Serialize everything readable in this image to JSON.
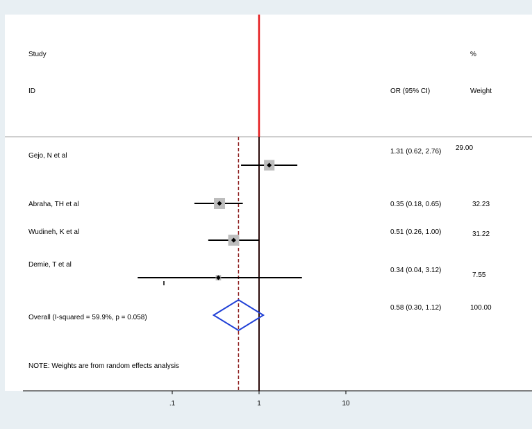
{
  "header": {
    "study_line1": "Study",
    "study_line2": "ID",
    "or_header": "OR (95% CI)",
    "weight_line1": "%",
    "weight_line2": "Weight"
  },
  "note": "NOTE: Weights are from random effects analysis",
  "colors": {
    "background": "#e8eff3",
    "panel": "#ffffff",
    "null_line": "#e41a1c",
    "study_marker_box": "#bdbdbd",
    "ci_line": "#000000",
    "overall_diamond": "#1f3fd6",
    "overall_line": "#8b1a1a"
  },
  "chart_data": {
    "type": "forest",
    "title": "",
    "xlabel": "",
    "x_scale": "log",
    "null_value": 1,
    "x_ticks": [
      0.1,
      1,
      10
    ],
    "x_tick_labels": [
      ".1",
      "1",
      "10"
    ],
    "studies": [
      {
        "name": "Gejo, N et al",
        "or": 1.31,
        "lo": 0.62,
        "hi": 2.76,
        "or_ci_label": "1.31 (0.62, 2.76)",
        "weight": 29.0,
        "weight_label": "29.00"
      },
      {
        "name": "Abraha, TH et al",
        "or": 0.35,
        "lo": 0.18,
        "hi": 0.65,
        "or_ci_label": "0.35 (0.18, 0.65)",
        "weight": 32.23,
        "weight_label": "32.23"
      },
      {
        "name": "Wudineh, K et al",
        "or": 0.51,
        "lo": 0.26,
        "hi": 1.0,
        "or_ci_label": "0.51 (0.26, 1.00)",
        "weight": 31.22,
        "weight_label": "31.22"
      },
      {
        "name": "Demie, T et al",
        "or": 0.34,
        "lo": 0.04,
        "hi": 3.12,
        "or_ci_label": "0.34 (0.04, 3.12)",
        "weight": 7.55,
        "weight_label": "7.55"
      }
    ],
    "overall": {
      "name": "Overall  (I-squared = 59.9%, p = 0.058)",
      "or": 0.58,
      "lo": 0.3,
      "hi": 1.12,
      "or_ci_label": "0.58 (0.30, 1.12)",
      "weight_label": "100.00"
    }
  }
}
